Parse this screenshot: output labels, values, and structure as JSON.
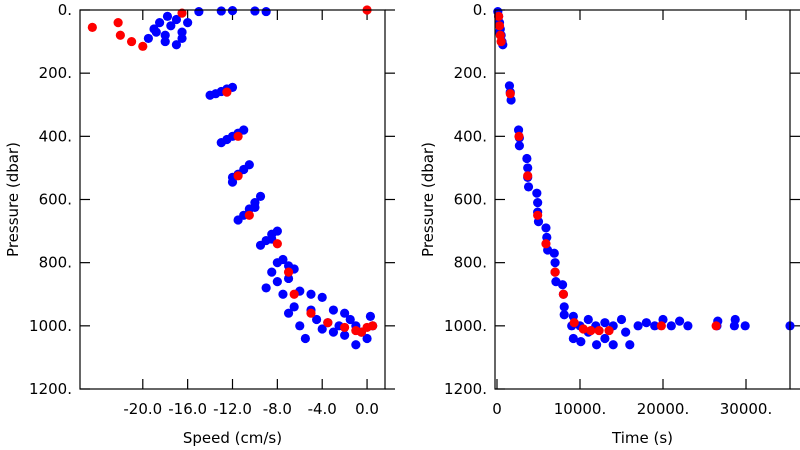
{
  "chart_data": [
    {
      "type": "scatter",
      "xlabel": "Speed (cm/s)",
      "ylabel": "Pressure (dbar)",
      "xlim": [
        -25.6,
        1.6
      ],
      "ylim": [
        0,
        1200
      ],
      "y_inverted": true,
      "xticks": [
        {
          "value": -20,
          "label": "-20.0"
        },
        {
          "value": -16,
          "label": "-16.0"
        },
        {
          "value": -12,
          "label": "-12.0"
        },
        {
          "value": -8,
          "label": "-8.0"
        },
        {
          "value": -4,
          "label": "-4.0"
        },
        {
          "value": 0,
          "label": "0.0"
        }
      ],
      "yticks": [
        {
          "value": 0,
          "label": "0."
        },
        {
          "value": 200,
          "label": "200."
        },
        {
          "value": 400,
          "label": "400."
        },
        {
          "value": 600,
          "label": "600."
        },
        {
          "value": 800,
          "label": "800."
        },
        {
          "value": 1000,
          "label": "1000."
        },
        {
          "value": 1200,
          "label": "1200."
        }
      ],
      "series": [
        {
          "color": "#0000ff",
          "x": [
            -19,
            -18.5,
            -18,
            -17.5,
            -17,
            -16.5,
            -18,
            -19.5,
            -17,
            -18.8,
            -16,
            -17.8,
            -16.5,
            -15,
            -13,
            -12,
            -10,
            -9,
            -14,
            -13.5,
            -13,
            -12.5,
            -12,
            -13,
            -12.5,
            -12,
            -11.5,
            -11,
            -12,
            -11.5,
            -11,
            -10.5,
            -12,
            -11,
            -10.5,
            -10,
            -9.5,
            -11.5,
            -10,
            -9,
            -8.5,
            -8,
            -9.5,
            -8.5,
            -8,
            -7.5,
            -7,
            -8.5,
            -6.5,
            -8,
            -7,
            -9,
            -7.5,
            -6,
            -5,
            -4,
            -6.5,
            -5,
            -3,
            -2,
            -6,
            -5.5,
            -4.5,
            -3.5,
            -2.5,
            -1.5,
            -1,
            -0.5,
            0,
            0.5,
            -1,
            -2,
            0.3,
            -3,
            -4,
            -7
          ],
          "values": [
            60,
            40,
            80,
            50,
            30,
            70,
            100,
            90,
            110,
            70,
            40,
            20,
            90,
            5,
            3,
            2,
            3,
            5,
            270,
            265,
            258,
            250,
            245,
            420,
            410,
            400,
            390,
            380,
            530,
            520,
            505,
            490,
            545,
            650,
            630,
            610,
            590,
            665,
            625,
            730,
            710,
            700,
            745,
            725,
            800,
            790,
            810,
            830,
            820,
            860,
            850,
            880,
            900,
            890,
            900,
            910,
            940,
            950,
            950,
            960,
            1000,
            1040,
            980,
            990,
            1000,
            980,
            1000,
            1020,
            1040,
            1000,
            1060,
            1030,
            970,
            1020,
            1010,
            960
          ]
        },
        {
          "color": "#ff0000",
          "x": [
            -24.5,
            -22.2,
            -22,
            -21,
            -20,
            -16.5,
            -12.5,
            -11.5,
            -11.5,
            -10.5,
            -8,
            -7,
            -6.5,
            -5,
            -3.5,
            -2,
            -0.5,
            0,
            0.5,
            -1,
            0
          ],
          "values": [
            55,
            40,
            80,
            100,
            115,
            10,
            260,
            400,
            525,
            650,
            740,
            830,
            900,
            960,
            990,
            1005,
            1020,
            1005,
            1000,
            1015,
            0
          ]
        }
      ]
    },
    {
      "type": "scatter",
      "xlabel": "Time (s)",
      "ylabel": "Pressure (dbar)",
      "xlim": [
        -240,
        35300
      ],
      "ylim": [
        0,
        1200
      ],
      "y_inverted": true,
      "xticks": [
        0,
        {
          "value": 10000,
          "label": "10000."
        },
        {
          "value": 20000,
          "label": "20000."
        },
        {
          "value": 30000,
          "label": "30000."
        }
      ],
      "yticks": [
        {
          "value": 0,
          "label": "0."
        },
        {
          "value": 200,
          "label": "200."
        },
        {
          "value": 400,
          "label": "400."
        },
        {
          "value": 600,
          "label": "600."
        },
        {
          "value": 800,
          "label": "800."
        },
        {
          "value": 1000,
          "label": "1000."
        },
        {
          "value": 1200,
          "label": "1200."
        }
      ],
      "series": [
        {
          "color": "#0000ff",
          "x": [
            100,
            200,
            300,
            400,
            500,
            600,
            700,
            300,
            1500,
            1600,
            1700,
            2600,
            2700,
            2700,
            3600,
            3700,
            3700,
            3800,
            4800,
            4900,
            4900,
            5000,
            5900,
            6000,
            6100,
            6900,
            7000,
            7000,
            7100,
            7900,
            8000,
            8100,
            8100,
            9000,
            9200,
            9200,
            10000,
            10100,
            11000,
            11000,
            11900,
            12000,
            13000,
            13000,
            14000,
            14000,
            15000,
            15500,
            16000,
            17000,
            18000,
            19000,
            20000,
            21000,
            22000,
            23000,
            26500,
            26600,
            28600,
            28700,
            29900,
            35300
          ],
          "values": [
            5,
            20,
            40,
            60,
            80,
            100,
            110,
            70,
            240,
            260,
            285,
            380,
            405,
            430,
            470,
            500,
            530,
            560,
            580,
            610,
            640,
            670,
            690,
            720,
            760,
            770,
            800,
            830,
            860,
            870,
            900,
            940,
            965,
            1000,
            1040,
            970,
            1000,
            1050,
            980,
            1020,
            1000,
            1060,
            990,
            1040,
            1000,
            1060,
            980,
            1020,
            1060,
            1000,
            990,
            1000,
            980,
            1000,
            985,
            1000,
            1000,
            985,
            1000,
            980,
            1000,
            1000
          ]
        },
        {
          "color": "#ff0000",
          "x": [
            200,
            300,
            400,
            500,
            1600,
            2650,
            3700,
            4900,
            5900,
            7000,
            8000,
            9300,
            10400,
            11300,
            12300,
            13500,
            19800,
            26400
          ],
          "values": [
            20,
            50,
            80,
            100,
            265,
            400,
            525,
            650,
            740,
            830,
            900,
            990,
            1010,
            1015,
            1015,
            1015,
            1000,
            1000
          ]
        }
      ]
    }
  ]
}
